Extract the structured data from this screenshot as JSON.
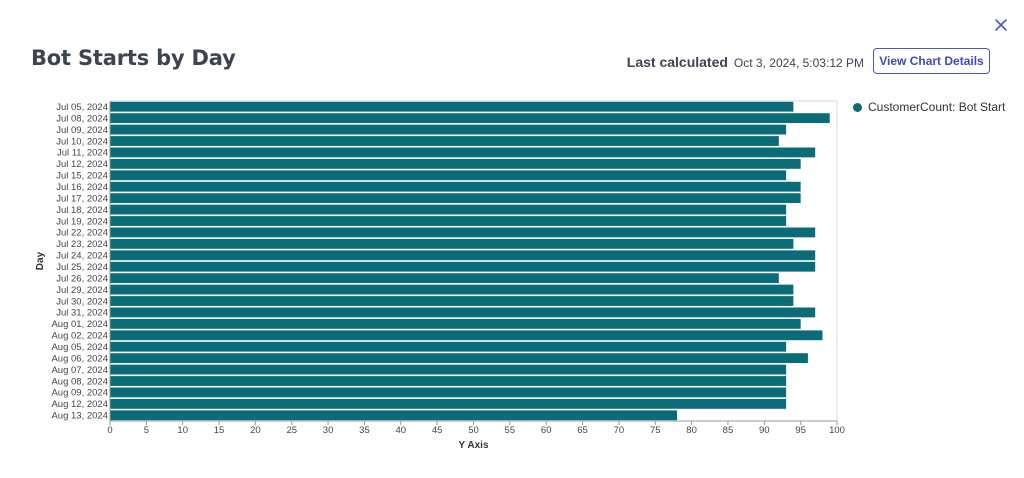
{
  "header": {
    "title": "Bot Starts by Day",
    "last_calculated_label": "Last calculated",
    "last_calculated_value": "Oct 3, 2024, 5:03:12 PM",
    "view_details_label": "View Chart Details"
  },
  "legend": {
    "label": "CustomerCount: Bot Start"
  },
  "colors": {
    "bar": "#0b6b78",
    "accent": "#4b56c7",
    "text": "#3d4451"
  },
  "chart_data": {
    "type": "bar",
    "orientation": "horizontal",
    "title": "Bot Starts by Day",
    "xlabel": "Y Axis",
    "ylabel": "Day",
    "xlim": [
      0,
      100
    ],
    "xticks": [
      0,
      5,
      10,
      15,
      20,
      25,
      30,
      35,
      40,
      45,
      50,
      55,
      60,
      65,
      70,
      75,
      80,
      85,
      90,
      95,
      100
    ],
    "grid": false,
    "legend_position": "right",
    "categories": [
      "Jul 05, 2024",
      "Jul 08, 2024",
      "Jul 09, 2024",
      "Jul 10, 2024",
      "Jul 11, 2024",
      "Jul 12, 2024",
      "Jul 15, 2024",
      "Jul 16, 2024",
      "Jul 17, 2024",
      "Jul 18, 2024",
      "Jul 19, 2024",
      "Jul 22, 2024",
      "Jul 23, 2024",
      "Jul 24, 2024",
      "Jul 25, 2024",
      "Jul 26, 2024",
      "Jul 29, 2024",
      "Jul 30, 2024",
      "Jul 31, 2024",
      "Aug 01, 2024",
      "Aug 02, 2024",
      "Aug 05, 2024",
      "Aug 06, 2024",
      "Aug 07, 2024",
      "Aug 08, 2024",
      "Aug 09, 2024",
      "Aug 12, 2024",
      "Aug 13, 2024"
    ],
    "series": [
      {
        "name": "CustomerCount: Bot Start",
        "values": [
          94,
          99,
          93,
          92,
          97,
          95,
          93,
          95,
          95,
          93,
          93,
          97,
          94,
          97,
          97,
          92,
          94,
          94,
          97,
          95,
          98,
          93,
          96,
          93,
          93,
          93,
          93,
          78
        ]
      }
    ]
  }
}
